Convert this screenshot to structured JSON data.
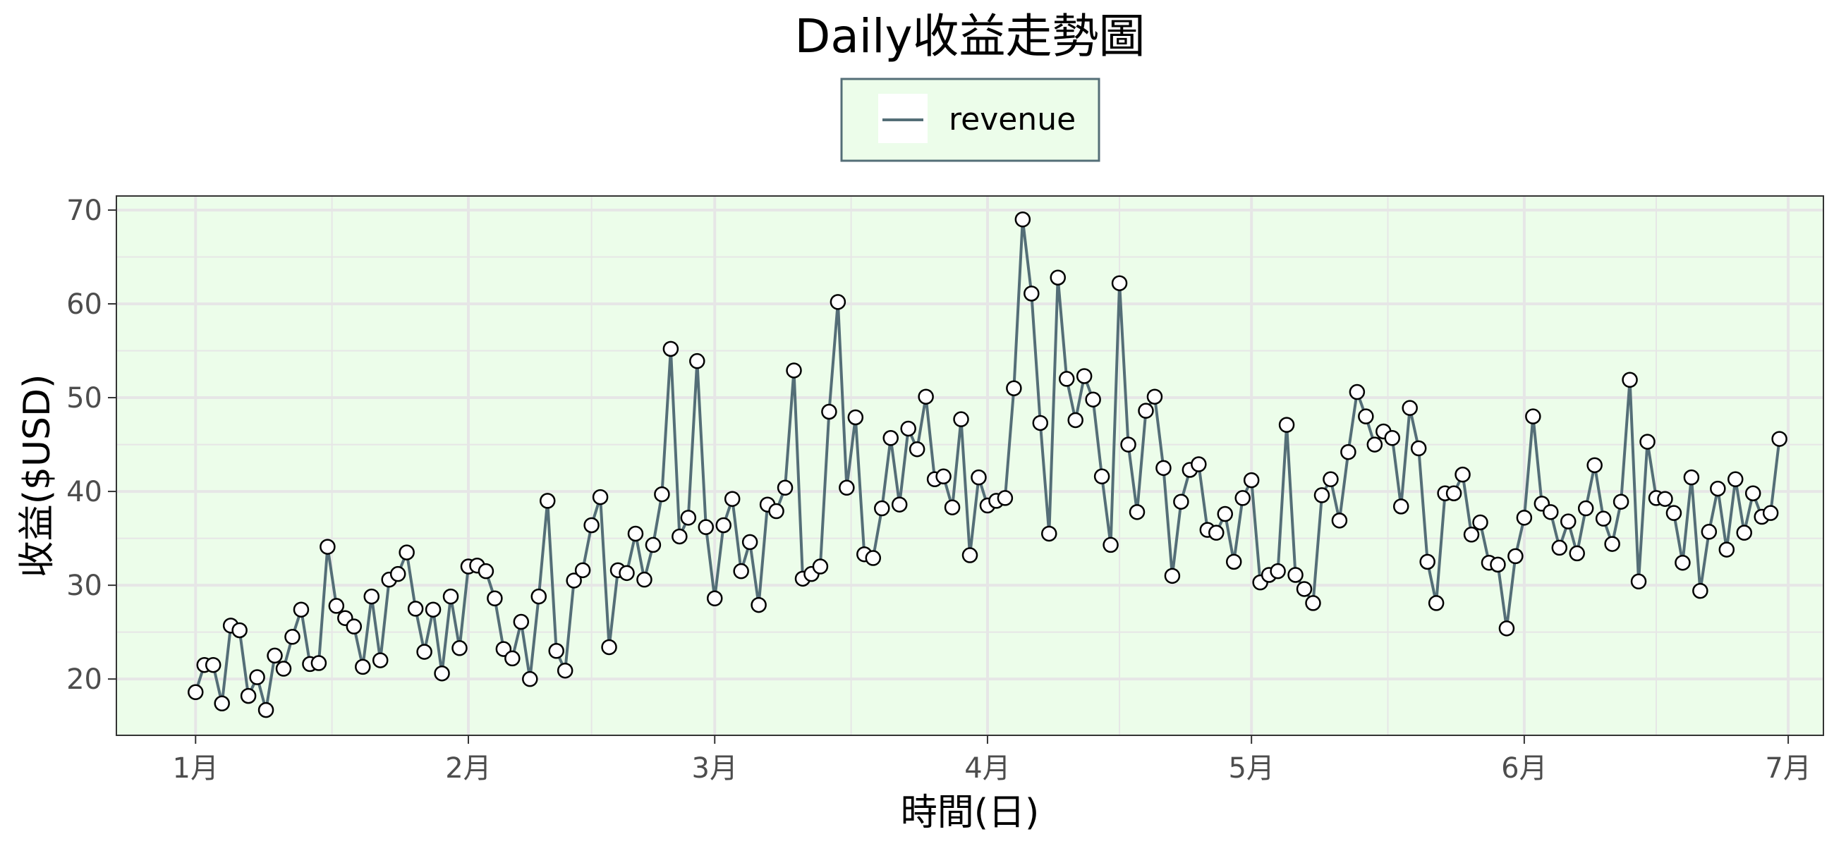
{
  "chart_data": {
    "type": "line",
    "title": "Daily收益走勢圖",
    "xlabel": "時間(日)",
    "ylabel": "收益($USD)",
    "x_start": "2023-01-01",
    "x_ticks": [
      {
        "date": "2023-01-01",
        "label": "1月"
      },
      {
        "date": "2023-02-01",
        "label": "2月"
      },
      {
        "date": "2023-03-01",
        "label": "3月"
      },
      {
        "date": "2023-04-01",
        "label": "4月"
      },
      {
        "date": "2023-05-01",
        "label": "5月"
      },
      {
        "date": "2023-06-01",
        "label": "6月"
      },
      {
        "date": "2023-07-01",
        "label": "7月"
      }
    ],
    "xlim": [
      "2022-12-23",
      "2023-07-05"
    ],
    "ylim": [
      14,
      71.5
    ],
    "y_ticks": [
      20,
      30,
      40,
      50,
      60,
      70
    ],
    "legend": {
      "position": "top",
      "entries": [
        "revenue"
      ]
    },
    "grid": true,
    "colors": {
      "line": "#546e77",
      "marker_fill": "#ffffff",
      "marker_edge": "#000000",
      "panel_bg": "#ecfdea",
      "legend_bg": "#ecfdea",
      "legend_border": "#546e77",
      "grid": "#e6e6e6"
    },
    "series": [
      {
        "name": "revenue",
        "values": [
          18.6,
          21.5,
          21.5,
          17.4,
          25.7,
          25.2,
          18.2,
          20.2,
          16.7,
          22.5,
          21.1,
          24.5,
          27.4,
          21.6,
          21.7,
          34.1,
          27.8,
          26.5,
          25.6,
          21.3,
          28.8,
          22.0,
          30.6,
          31.2,
          33.5,
          27.5,
          22.9,
          27.4,
          20.6,
          28.8,
          23.3,
          32.0,
          32.1,
          31.5,
          28.6,
          23.2,
          22.2,
          26.1,
          20.0,
          28.8,
          39.0,
          23.0,
          20.9,
          30.5,
          31.6,
          36.4,
          39.4,
          23.4,
          31.6,
          31.3,
          35.5,
          30.6,
          34.3,
          39.7,
          55.2,
          35.2,
          37.2,
          53.9,
          36.2,
          28.6,
          36.4,
          39.2,
          31.5,
          34.6,
          27.9,
          38.6,
          37.9,
          40.4,
          52.9,
          30.7,
          31.2,
          32.0,
          48.5,
          60.2,
          40.4,
          47.9,
          33.3,
          32.9,
          38.2,
          45.7,
          38.6,
          46.7,
          44.5,
          50.1,
          41.3,
          41.6,
          38.3,
          47.7,
          33.2,
          41.5,
          38.5,
          39.0,
          39.3,
          51.0,
          69.0,
          61.1,
          47.3,
          35.5,
          62.8,
          52.0,
          47.6,
          52.3,
          49.8,
          41.6,
          34.3,
          62.2,
          45.0,
          37.8,
          48.6,
          50.1,
          42.5,
          31.0,
          38.9,
          42.3,
          42.9,
          35.9,
          35.6,
          37.6,
          32.5,
          39.3,
          41.2,
          30.3,
          31.1,
          31.5,
          47.1,
          31.1,
          29.6,
          28.1,
          39.6,
          41.3,
          36.9,
          44.2,
          50.6,
          48.0,
          45.0,
          46.4,
          45.7,
          38.4,
          48.9,
          44.6,
          32.5,
          28.1,
          39.8,
          39.8,
          41.8,
          35.4,
          36.7,
          32.4,
          32.2,
          25.4,
          33.1,
          37.2,
          48.0,
          38.7,
          37.8,
          34.0,
          36.8,
          33.4,
          38.2,
          42.8,
          37.1,
          34.4,
          38.9,
          51.9,
          30.4,
          45.3,
          39.3,
          39.2,
          37.7,
          32.4,
          41.5,
          29.4,
          35.7,
          40.3,
          33.8,
          41.3,
          35.6,
          39.8,
          37.3,
          37.7,
          45.6
        ]
      }
    ]
  }
}
